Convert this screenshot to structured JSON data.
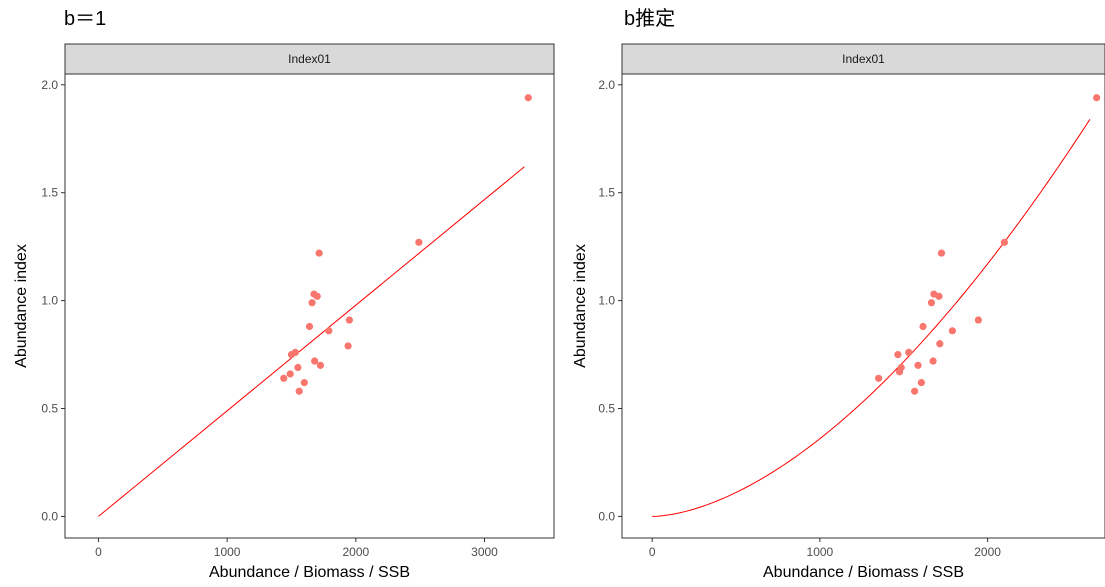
{
  "chart_data": [
    {
      "type": "scatter",
      "title": "b＝1",
      "facet_label": "Index01",
      "xlabel": "Abundance / Biomass / SSB",
      "ylabel": "Abundance index",
      "xlim": [
        -260,
        3540
      ],
      "ylim": [
        -0.1,
        2.05
      ],
      "xticks": [
        0,
        1000,
        2000,
        3000
      ],
      "xtick_labels": [
        "0",
        "1000",
        "2000",
        "3000"
      ],
      "yticks": [
        0.0,
        0.5,
        1.0,
        1.5,
        2.0
      ],
      "ytick_labels": [
        "0.0",
        "0.5",
        "1.0",
        "1.5",
        "2.0"
      ],
      "grid": false,
      "point_color": "#F8766D",
      "line_color": "#FF0000",
      "points": [
        {
          "x": 1440,
          "y": 0.64
        },
        {
          "x": 1490,
          "y": 0.66
        },
        {
          "x": 1500,
          "y": 0.75
        },
        {
          "x": 1530,
          "y": 0.76
        },
        {
          "x": 1550,
          "y": 0.69
        },
        {
          "x": 1560,
          "y": 0.58
        },
        {
          "x": 1600,
          "y": 0.62
        },
        {
          "x": 1640,
          "y": 0.88
        },
        {
          "x": 1660,
          "y": 0.99
        },
        {
          "x": 1675,
          "y": 1.03
        },
        {
          "x": 1680,
          "y": 0.72
        },
        {
          "x": 1700,
          "y": 1.02
        },
        {
          "x": 1715,
          "y": 1.22
        },
        {
          "x": 1725,
          "y": 0.7
        },
        {
          "x": 1790,
          "y": 0.86
        },
        {
          "x": 1940,
          "y": 0.79
        },
        {
          "x": 1950,
          "y": 0.91
        },
        {
          "x": 2490,
          "y": 1.27
        },
        {
          "x": 3340,
          "y": 1.94
        }
      ],
      "fit": {
        "model": "linear",
        "x_range": [
          0,
          3310
        ],
        "y_range": [
          0.0,
          1.62
        ]
      }
    },
    {
      "type": "scatter",
      "title": "b推定",
      "facet_label": "Index01",
      "xlabel": "Abundance / Biomass / SSB",
      "ylabel": "Abundance index",
      "xlim": [
        -180,
        2700
      ],
      "ylim": [
        -0.1,
        2.05
      ],
      "xticks": [
        0,
        1000,
        2000
      ],
      "xtick_labels": [
        "0",
        "1000",
        "2000"
      ],
      "yticks": [
        0.0,
        0.5,
        1.0,
        1.5,
        2.0
      ],
      "ytick_labels": [
        "0.0",
        "0.5",
        "1.0",
        "1.5",
        "2.0"
      ],
      "grid": false,
      "point_color": "#F8766D",
      "line_color": "#FF0000",
      "points": [
        {
          "x": 1350,
          "y": 0.64
        },
        {
          "x": 1465,
          "y": 0.75
        },
        {
          "x": 1475,
          "y": 0.67
        },
        {
          "x": 1485,
          "y": 0.69
        },
        {
          "x": 1530,
          "y": 0.76
        },
        {
          "x": 1565,
          "y": 0.58
        },
        {
          "x": 1585,
          "y": 0.7
        },
        {
          "x": 1605,
          "y": 0.62
        },
        {
          "x": 1615,
          "y": 0.88
        },
        {
          "x": 1665,
          "y": 0.99
        },
        {
          "x": 1675,
          "y": 0.72
        },
        {
          "x": 1680,
          "y": 1.03
        },
        {
          "x": 1710,
          "y": 1.02
        },
        {
          "x": 1715,
          "y": 0.8
        },
        {
          "x": 1725,
          "y": 1.22
        },
        {
          "x": 1790,
          "y": 0.86
        },
        {
          "x": 1945,
          "y": 0.91
        },
        {
          "x": 2100,
          "y": 1.27
        },
        {
          "x": 2650,
          "y": 1.94
        }
      ],
      "fit": {
        "model": "power",
        "x_range": [
          0,
          2610
        ],
        "y_end": 1.84,
        "exponent": 1.7
      }
    }
  ]
}
